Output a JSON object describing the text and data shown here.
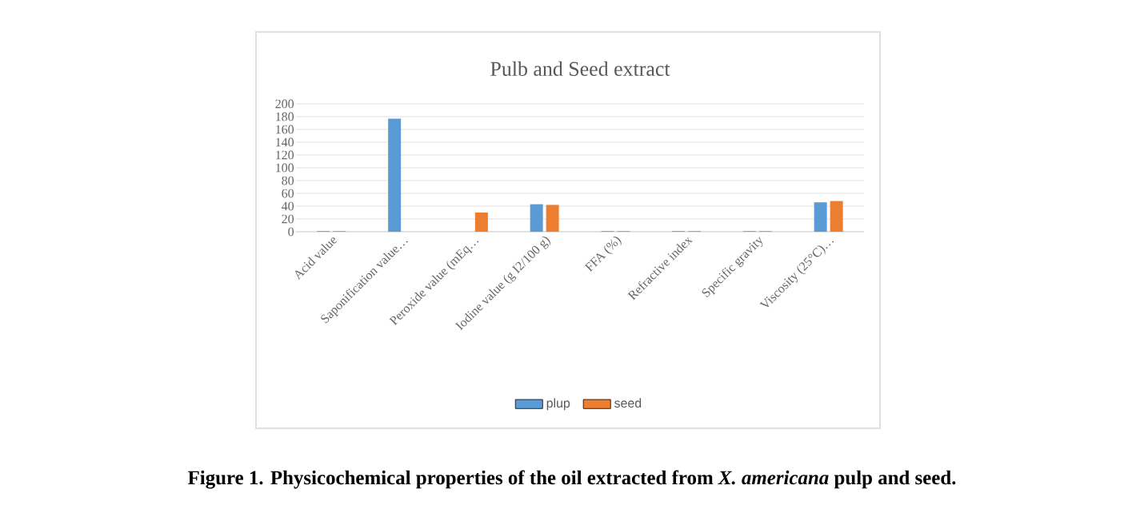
{
  "chart_data": {
    "type": "bar",
    "title": "Pulb and Seed extract",
    "categories": [
      "Acid value",
      "Saponification value…",
      "Peroxide value (mEq…",
      "Iodine value (g I2/100 g)",
      "FFA (%)",
      "Refractive index",
      "Specific gravity",
      "Viscosity (25°C)…"
    ],
    "series": [
      {
        "name": "plup",
        "color": "#5b9bd5",
        "values": [
          1,
          177,
          null,
          43,
          1,
          1,
          1,
          46
        ]
      },
      {
        "name": "seed",
        "color": "#ed7d31",
        "values": [
          1,
          null,
          30,
          42,
          1,
          1,
          1,
          48
        ]
      }
    ],
    "ylim": [
      0,
      200
    ],
    "yticks": [
      0,
      20,
      40,
      60,
      80,
      100,
      120,
      140,
      160,
      180,
      200
    ],
    "grid": "y",
    "legend": "bottom",
    "annotations": [
      "Figure 1. Physicochemical properties of the oil extracted from *X. americana* pulp and seed."
    ]
  }
}
